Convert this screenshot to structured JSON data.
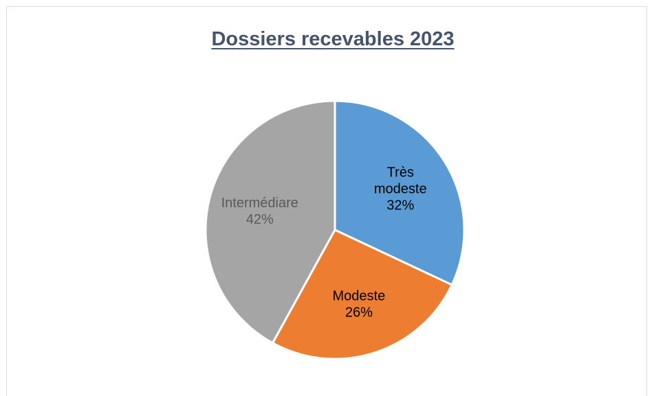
{
  "chart_data": {
    "type": "pie",
    "title": "Dossiers recevables 2023",
    "slices": [
      {
        "label": "Très modeste",
        "label_lines": [
          "Très",
          "modeste"
        ],
        "value": 32,
        "display": "32%",
        "color": "#5b9bd5",
        "label_color": "#000000"
      },
      {
        "label": "Modeste",
        "label_lines": [
          "Modeste"
        ],
        "value": 26,
        "display": "26%",
        "color": "#ed7d31",
        "label_color": "#000000"
      },
      {
        "label": "Intermédiare",
        "label_lines": [
          "Intermédiare"
        ],
        "value": 42,
        "display": "42%",
        "color": "#a5a5a5",
        "label_color": "#595959"
      }
    ]
  }
}
